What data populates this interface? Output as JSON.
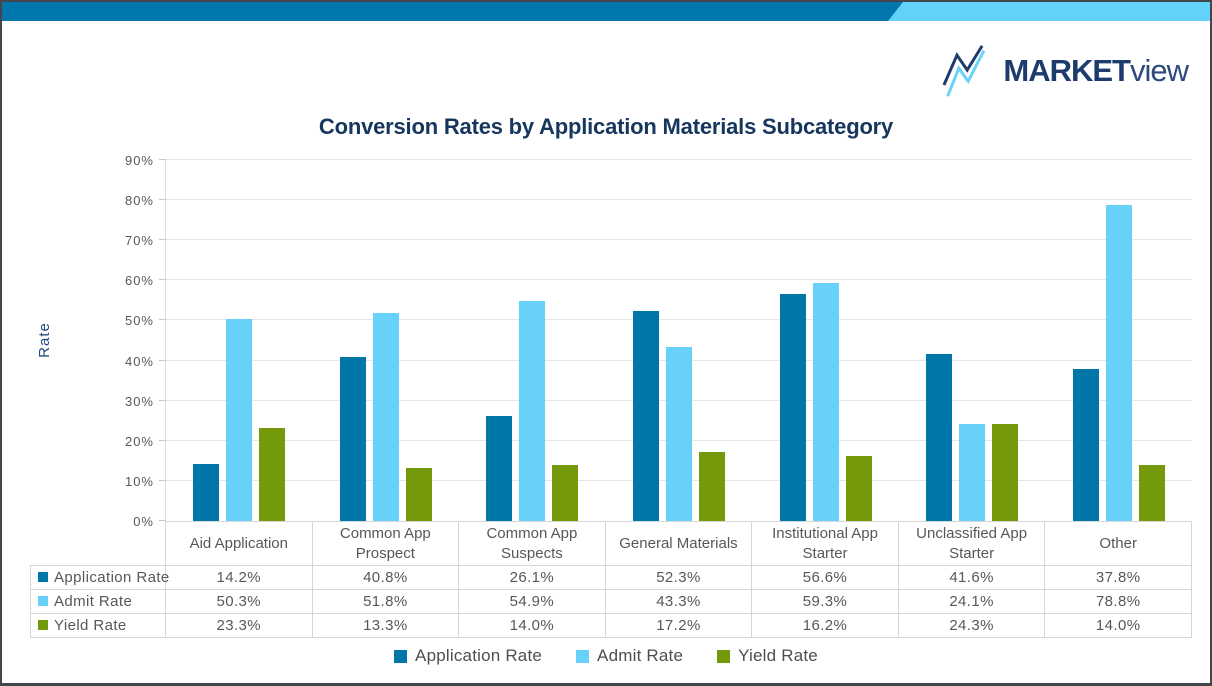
{
  "brand": {
    "name_bold": "MARKET",
    "name_light": "view",
    "navy": "#1d3b6d",
    "light_blue": "#6bd2fa"
  },
  "topbar": {
    "color_main": "#0177ad",
    "color_accent": "#63d2f9"
  },
  "chart_data": {
    "type": "bar",
    "title": "Conversion Rates by Application Materials Subcategory",
    "xlabel": "",
    "ylabel": "Rate",
    "ylim": [
      0,
      90
    ],
    "ytick_labels": [
      "0%",
      "10%",
      "20%",
      "30%",
      "40%",
      "50%",
      "60%",
      "70%",
      "80%",
      "90%"
    ],
    "ytick_values": [
      0,
      10,
      20,
      30,
      40,
      50,
      60,
      70,
      80,
      90
    ],
    "grid": true,
    "legend_position": "bottom",
    "value_suffix": "%",
    "categories": [
      "Aid Application",
      "Common App Prospect",
      "Common App Suspects",
      "General Materials",
      "Institutional App Starter",
      "Unclassified App Starter",
      "Other"
    ],
    "series": [
      {
        "name": "Application Rate",
        "color": "#0077a8",
        "values": [
          14.2,
          40.8,
          26.1,
          52.3,
          56.6,
          41.6,
          37.8
        ]
      },
      {
        "name": "Admit Rate",
        "color": "#68d1fa",
        "values": [
          50.3,
          51.8,
          54.9,
          43.3,
          59.3,
          24.1,
          78.8
        ]
      },
      {
        "name": "Yield Rate",
        "color": "#74990a",
        "values": [
          23.3,
          13.3,
          14.0,
          17.2,
          16.2,
          24.3,
          14.0
        ]
      }
    ]
  }
}
